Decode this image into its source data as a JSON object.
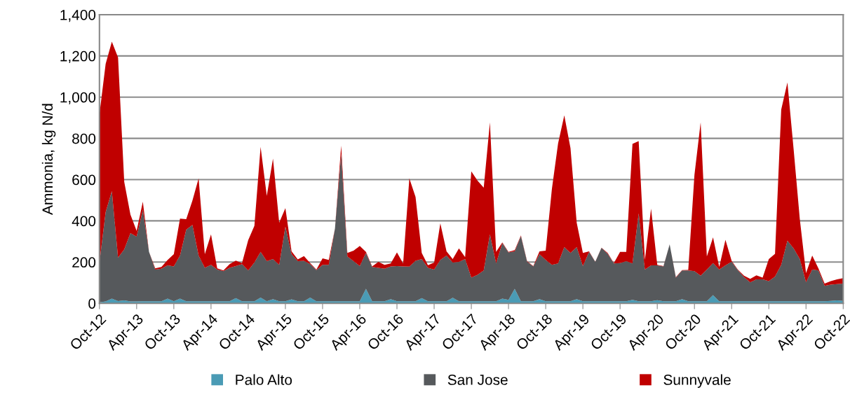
{
  "chart_data": {
    "type": "area",
    "stacked": true,
    "ylabel": "Ammonia, kg N/d",
    "categories": [
      "Oct-12",
      null,
      null,
      null,
      null,
      null,
      "Apr-13",
      null,
      null,
      null,
      null,
      null,
      "Oct-13",
      null,
      null,
      null,
      null,
      null,
      "Apr-14",
      null,
      null,
      null,
      null,
      null,
      "Oct-14",
      null,
      null,
      null,
      null,
      null,
      "Apr-15",
      null,
      null,
      null,
      null,
      null,
      "Oct-15",
      null,
      null,
      null,
      null,
      null,
      "Apr-16",
      null,
      null,
      null,
      null,
      null,
      "Oct-16",
      null,
      null,
      null,
      null,
      null,
      "Apr-17",
      null,
      null,
      null,
      null,
      null,
      "Oct-17",
      null,
      null,
      null,
      null,
      null,
      "Apr-18",
      null,
      null,
      null,
      null,
      null,
      "Oct-18",
      null,
      null,
      null,
      null,
      null,
      "Apr-19",
      null,
      null,
      null,
      null,
      null,
      "Oct-19",
      null,
      null,
      null,
      null,
      null,
      "Apr-20",
      null,
      null,
      null,
      null,
      null,
      "Oct-20",
      null,
      null,
      null,
      null,
      null,
      "Apr-21",
      null,
      null,
      null,
      null,
      null,
      "Oct-21",
      null,
      null,
      null,
      null,
      null,
      "Apr-22",
      null,
      null,
      null,
      null,
      null,
      "Oct-22"
    ],
    "series": [
      {
        "name": "Palo Alto",
        "color": "#4a9bb5",
        "values": [
          5,
          9,
          23,
          11,
          14,
          9,
          9,
          10,
          10,
          10,
          10,
          23,
          10,
          23,
          10,
          10,
          10,
          10,
          10,
          10,
          10,
          10,
          25,
          10,
          10,
          10,
          28,
          10,
          20,
          10,
          10,
          19,
          10,
          10,
          28,
          10,
          10,
          10,
          10,
          10,
          10,
          10,
          10,
          70,
          10,
          10,
          10,
          20,
          10,
          10,
          10,
          10,
          25,
          10,
          10,
          10,
          10,
          27,
          10,
          10,
          10,
          10,
          10,
          10,
          10,
          23,
          17,
          70,
          10,
          10,
          10,
          20,
          10,
          10,
          10,
          10,
          10,
          20,
          10,
          10,
          10,
          10,
          10,
          10,
          10,
          10,
          17,
          10,
          10,
          10,
          15,
          10,
          10,
          10,
          20,
          10,
          10,
          10,
          10,
          40,
          10,
          10,
          10,
          10,
          10,
          10,
          10,
          10,
          10,
          10,
          10,
          10,
          10,
          10,
          10,
          10,
          10,
          10,
          12,
          14,
          12
        ]
      },
      {
        "name": "San Jose",
        "color": "#56595c",
        "values": [
          193,
          433,
          521,
          210,
          247,
          331,
          314,
          443,
          239,
          154,
          158,
          161,
          169,
          209,
          347,
          370,
          222,
          162,
          177,
          154,
          146,
          162,
          156,
          180,
          149,
          188,
          221,
          194,
          195,
          177,
          362,
          219,
          194,
          196,
          162,
          151,
          177,
          177,
          353,
          715,
          217,
          194,
          171,
          174,
          166,
          162,
          158,
          159,
          171,
          169,
          168,
          196,
          190,
          162,
          154,
          200,
          222,
          171,
          191,
          205,
          115,
          128,
          149,
          324,
          183,
          269,
          230,
          182,
          316,
          192,
          169,
          218,
          200,
          177,
          183,
          262,
          234,
          252,
          171,
          239,
          191,
          259,
          230,
          183,
          185,
          194,
          176,
          426,
          154,
          174,
          169,
          169,
          276,
          115,
          139,
          149,
          146,
          124,
          154,
          155,
          154,
          174,
          192,
          151,
          117,
          92,
          106,
          106,
          98,
          120,
          177,
          294,
          256,
          205,
          92,
          154,
          149,
          75,
          79,
          79,
          84
        ]
      },
      {
        "name": "Sunnyvale",
        "color": "#c00000",
        "values": [
          720,
          719,
          725,
          972,
          328,
          90,
          28,
          40,
          0,
          6,
          8,
          26,
          59,
          179,
          51,
          118,
          374,
          66,
          147,
          6,
          3,
          18,
          26,
          5,
          147,
          178,
          510,
          317,
          487,
          204,
          90,
          14,
          9,
          23,
          5,
          3,
          31,
          23,
          0,
          40,
          17,
          51,
          97,
          5,
          3,
          29,
          19,
          14,
          66,
          14,
          428,
          310,
          29,
          13,
          34,
          178,
          20,
          17,
          65,
          9,
          515,
          457,
          402,
          544,
          56,
          3,
          2,
          6,
          3,
          2,
          2,
          14,
          45,
          368,
          583,
          640,
          509,
          119,
          63,
          3,
          1,
          1,
          4,
          2,
          54,
          45,
          580,
          351,
          46,
          275,
          3,
          2,
          0,
          2,
          2,
          3,
          467,
          744,
          63,
          125,
          12,
          124,
          4,
          3,
          7,
          17,
          20,
          9,
          107,
          110,
          753,
          767,
          482,
          193,
          45,
          68,
          11,
          11,
          17,
          23,
          26
        ]
      }
    ],
    "ylim": [
      0,
      1400
    ],
    "yticks": [
      0,
      {
        "value": 200,
        "label": "200"
      },
      {
        "value": 400,
        "label": "400"
      },
      {
        "value": 600,
        "label": "600"
      },
      {
        "value": 800,
        "label": "800"
      },
      {
        "value": 1000,
        "label": "1,000"
      },
      {
        "value": 1200,
        "label": "1,200"
      },
      {
        "value": 1400,
        "label": "1,400"
      }
    ],
    "grid": "y",
    "legend": "bottom"
  }
}
